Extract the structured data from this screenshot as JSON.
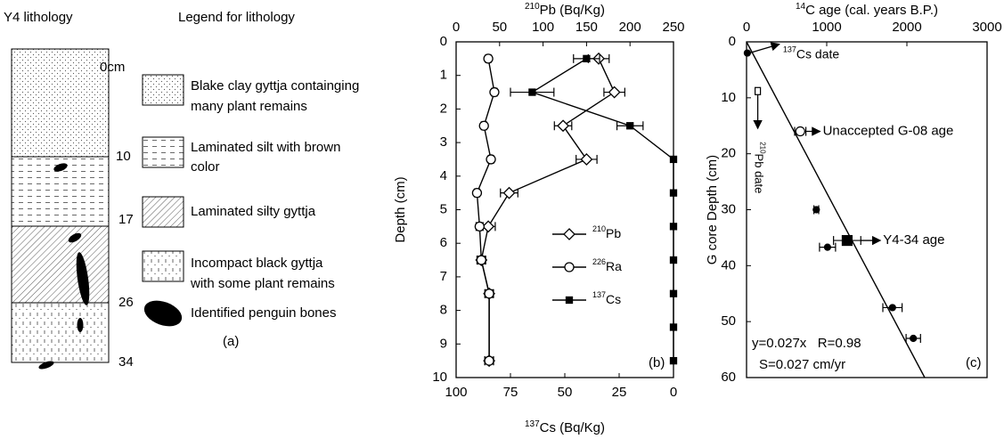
{
  "lithology": {
    "title": "Y4 lithology",
    "legend_title": "Legend for lithology",
    "depth_labels": [
      "0cm",
      "10",
      "17",
      "26",
      "34"
    ],
    "legend": [
      [
        "Blake clay gyttja containging",
        "many plant remains"
      ],
      [
        "Laminated silt with brown",
        "color"
      ],
      [
        "Laminated silty gyttja"
      ],
      [
        "Incompact black gyttja",
        "with some plant remains"
      ],
      [
        "Identified penguin bones"
      ]
    ],
    "panel_label": "(a)"
  },
  "chart_data": [
    {
      "type": "line",
      "panel_label": "(b)",
      "xlabel_sup": "210",
      "xlabel": "Pb (Bq/Kg)",
      "x2label_sup": "137",
      "x2label": "Cs (Bq/Kg)",
      "ylabel": "Depth (cm)",
      "xlim": [
        0,
        250
      ],
      "xticks": [
        0,
        50,
        100,
        150,
        200,
        250
      ],
      "x2lim": [
        100,
        0
      ],
      "x2ticks": [
        100,
        75,
        50,
        25,
        0
      ],
      "ylim": [
        0,
        10
      ],
      "yticks": [
        0,
        1,
        2,
        3,
        4,
        5,
        6,
        7,
        8,
        9,
        10
      ],
      "series": [
        {
          "name_sup": "210",
          "name": "Pb",
          "marker": "diamond",
          "axis": "x",
          "depth": [
            0.5,
            1.5,
            2.5,
            3.5,
            4.5,
            5.5,
            6.5,
            7.5,
            9.5
          ],
          "values": [
            164,
            182,
            123,
            150,
            61,
            37,
            29,
            38,
            38
          ],
          "errors": [
            12,
            12,
            10,
            12,
            10,
            8,
            5,
            5,
            5
          ]
        },
        {
          "name_sup": "226",
          "name": "Ra",
          "marker": "circle",
          "axis": "x",
          "depth": [
            0.5,
            1.5,
            2.5,
            3.5,
            4.5,
            5.5,
            6.5,
            7.5,
            9.5
          ],
          "values": [
            37,
            44,
            32,
            40,
            24,
            27,
            29,
            38,
            38
          ],
          "errors": [
            3,
            3,
            3,
            3,
            3,
            4,
            4,
            4,
            5
          ]
        },
        {
          "name_sup": "137",
          "name": "Cs",
          "marker": "square",
          "axis": "x2",
          "depth": [
            0.5,
            1.5,
            2.5,
            3.5,
            4.5,
            5.5,
            6.5,
            7.5,
            8.5,
            9.5
          ],
          "values": [
            40,
            65,
            20,
            0,
            0,
            0,
            0,
            0,
            0,
            0
          ],
          "errors": [
            6,
            10,
            6,
            null,
            null,
            null,
            null,
            null,
            null,
            null
          ]
        }
      ]
    },
    {
      "type": "scatter",
      "panel_label": "(c)",
      "xlabel_sup": "14",
      "xlabel": "C age (cal. years B.P.)",
      "ylabel": "G core Depth (cm)",
      "xlim": [
        0,
        3000
      ],
      "xticks": [
        0,
        1000,
        2000,
        3000
      ],
      "ylim": [
        0,
        60
      ],
      "yticks": [
        0,
        10,
        20,
        30,
        40,
        50,
        60
      ],
      "series": [
        {
          "marker": "circle-filled",
          "x": [
            10,
            870,
            1010,
            1820,
            2080
          ],
          "values": [
            2,
            30,
            36.7,
            47.5,
            53
          ],
          "errors": [
            null,
            30,
            100,
            120,
            90
          ]
        },
        {
          "marker": "circle-open",
          "x": [
            670
          ],
          "values": [
            16
          ],
          "errors": [
            70
          ]
        },
        {
          "marker": "square-small",
          "x": [
            140
          ],
          "values": [
            8.8
          ],
          "errors": [
            null
          ]
        },
        {
          "marker": "square",
          "x": [
            1255
          ],
          "values": [
            35.5
          ],
          "errors": [
            170
          ]
        }
      ],
      "fit": {
        "slope": 0.027
      },
      "annotations": {
        "cs_date_sup": "137",
        "cs_date": "Cs date",
        "unaccepted": "Unaccepted G-08 age",
        "pb_date_sup": "210",
        "pb_date": "Pb date",
        "y4_age": "Y4-34 age",
        "equation": "y=0.027x   R=0.98",
        "rate": "S=0.027 cm/yr"
      }
    }
  ]
}
